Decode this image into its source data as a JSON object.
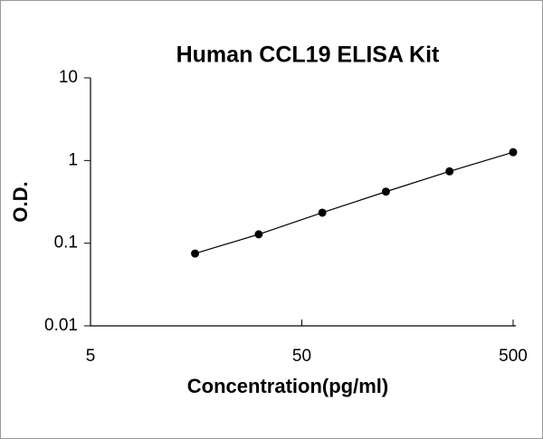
{
  "chart_data": {
    "type": "scatter",
    "title": "Human CCL19 ELISA Kit",
    "x_label": "Concentration(pg/ml)",
    "y_label": "O.D.",
    "series": [
      {
        "x": [
          15.625,
          31.25,
          62.5,
          125,
          250,
          500
        ],
        "values": [
          0.075,
          0.128,
          0.234,
          0.42,
          0.74,
          1.26
        ],
        "color": "#000000"
      }
    ],
    "xlim": [
      5,
      500
    ],
    "ylim": [
      0.01,
      10
    ],
    "xticks": [
      5,
      50,
      500
    ],
    "yticks": [
      0.01,
      0.1,
      1,
      10
    ],
    "xscale": "log",
    "yscale": "log",
    "grid": false
  }
}
